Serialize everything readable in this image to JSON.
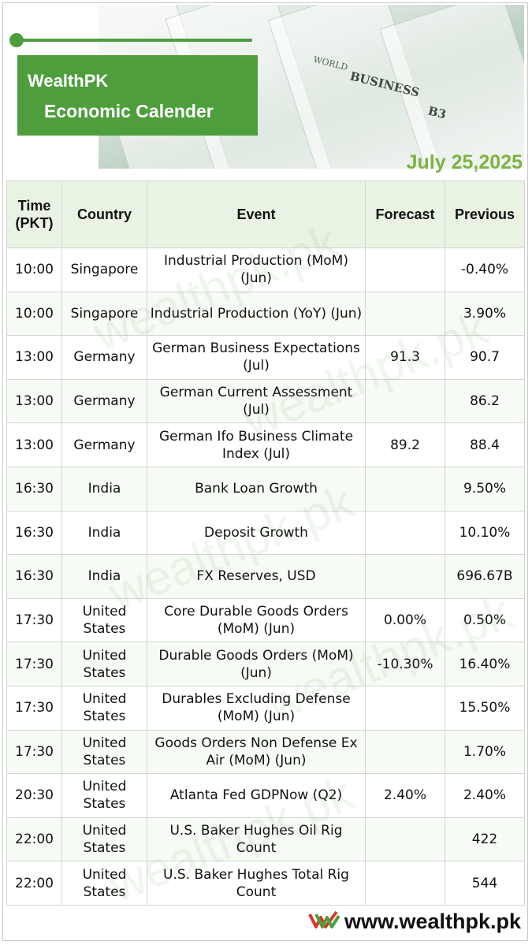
{
  "header": {
    "brand": "WealthPK",
    "subtitle": "Economic Calender",
    "date": "July 25,2025",
    "photo_words": {
      "world": "WORLD",
      "business": "BUSINESS",
      "page": "B3"
    }
  },
  "table": {
    "columns": [
      "Time (PKT)",
      "Country",
      "Event",
      "Forecast",
      "Previous"
    ],
    "rows": [
      {
        "time": "10:00",
        "country": "Singapore",
        "event": "Industrial Production (MoM) (Jun)",
        "forecast": "",
        "previous": "-0.40%"
      },
      {
        "time": "10:00",
        "country": "Singapore",
        "event": "Industrial Production (YoY) (Jun)",
        "forecast": "",
        "previous": "3.90%"
      },
      {
        "time": "13:00",
        "country": "Germany",
        "event": "German Business Expectations (Jul)",
        "forecast": "91.3",
        "previous": "90.7"
      },
      {
        "time": "13:00",
        "country": "Germany",
        "event": "German Current Assessment (Jul)",
        "forecast": "",
        "previous": "86.2"
      },
      {
        "time": "13:00",
        "country": "Germany",
        "event": "German Ifo Business Climate Index (Jul)",
        "forecast": "89.2",
        "previous": "88.4"
      },
      {
        "time": "16:30",
        "country": "India",
        "event": "Bank Loan Growth",
        "forecast": "",
        "previous": "9.50%"
      },
      {
        "time": "16:30",
        "country": "India",
        "event": "Deposit Growth",
        "forecast": "",
        "previous": "10.10%"
      },
      {
        "time": "16:30",
        "country": "India",
        "event": "FX Reserves, USD",
        "forecast": "",
        "previous": "696.67B"
      },
      {
        "time": "17:30",
        "country": "United States",
        "event": "Core Durable Goods Orders (MoM) (Jun)",
        "forecast": "0.00%",
        "previous": "0.50%"
      },
      {
        "time": "17:30",
        "country": "United States",
        "event": "Durable Goods Orders (MoM) (Jun)",
        "forecast": "-10.30%",
        "previous": "16.40%"
      },
      {
        "time": "17:30",
        "country": "United States",
        "event": "Durables Excluding Defense (MoM) (Jun)",
        "forecast": "",
        "previous": "15.50%"
      },
      {
        "time": "17:30",
        "country": "United States",
        "event": "Goods Orders Non Defense Ex Air (MoM) (Jun)",
        "forecast": "",
        "previous": "1.70%"
      },
      {
        "time": "20:30",
        "country": "United States",
        "event": "Atlanta Fed GDPNow (Q2)",
        "forecast": "2.40%",
        "previous": "2.40%"
      },
      {
        "time": "22:00",
        "country": "United States",
        "event": "U.S. Baker Hughes Oil Rig Count",
        "forecast": "",
        "previous": "422"
      },
      {
        "time": "22:00",
        "country": "United States",
        "event": "U.S. Baker Hughes Total Rig Count",
        "forecast": "",
        "previous": "544"
      }
    ]
  },
  "watermark": "wealthpk.pk",
  "footer": {
    "url": "www.wealthpk.pk",
    "logo_icon": "wealthpk-logo-icon"
  },
  "colors": {
    "brand_green": "#4f9e3e",
    "date_green": "#7cb342",
    "header_bg": "#e9f3e4"
  }
}
